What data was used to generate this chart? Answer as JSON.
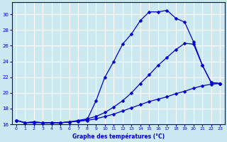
{
  "xlabel": "Graphe des températures (°C)",
  "hours": [
    0,
    1,
    2,
    3,
    4,
    5,
    6,
    7,
    8,
    9,
    10,
    11,
    12,
    13,
    14,
    15,
    16,
    17,
    18,
    19,
    20,
    21,
    22,
    23
  ],
  "line1": [
    16.5,
    16.2,
    16.3,
    16.2,
    16.2,
    16.2,
    16.3,
    16.4,
    16.6,
    19.0,
    22.0,
    24.0,
    26.2,
    27.5,
    29.2,
    30.3,
    30.3,
    30.5,
    29.5,
    29.0,
    26.5,
    23.5,
    21.3,
    21.2
  ],
  "line2": [
    16.5,
    16.2,
    16.3,
    16.2,
    16.2,
    16.2,
    16.3,
    16.5,
    16.7,
    17.0,
    17.5,
    18.2,
    19.0,
    20.0,
    21.2,
    22.3,
    23.5,
    24.5,
    25.5,
    26.3,
    26.2,
    23.5,
    21.3,
    21.2
  ],
  "line3": [
    16.5,
    16.2,
    16.2,
    16.2,
    16.2,
    16.2,
    16.3,
    16.4,
    16.5,
    16.7,
    17.0,
    17.3,
    17.7,
    18.1,
    18.5,
    18.9,
    19.2,
    19.5,
    19.9,
    20.2,
    20.6,
    20.9,
    21.1,
    21.2
  ],
  "line_color": "#0000cc",
  "bg_color": "#cce8f0",
  "grid_color": "#ffffff",
  "ylim_min": 16,
  "ylim_max": 31,
  "xlim_min": 0,
  "xlim_max": 23,
  "yticks": [
    16,
    18,
    20,
    22,
    24,
    26,
    28,
    30
  ],
  "xticks": [
    0,
    1,
    2,
    3,
    4,
    5,
    6,
    7,
    8,
    9,
    10,
    11,
    12,
    13,
    14,
    15,
    16,
    17,
    18,
    19,
    20,
    21,
    22,
    23
  ],
  "xlabel_fontsize": 5.5,
  "tick_fontsize": 4.5,
  "ytick_fontsize": 5.0,
  "marker_size": 2.5,
  "line_width": 0.9
}
